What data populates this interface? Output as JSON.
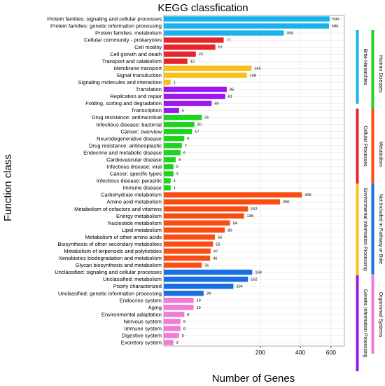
{
  "colors": {
    "cellular_processes": "#e8262a",
    "environmental_information_processing": "#f8bf1f",
    "genetic_information_processing": "#9b17ef",
    "human_diseases": "#1fd41f",
    "metabolism": "#fb4d11",
    "not_included": "#1a6ee3",
    "organismal_systems": "#f27bd7",
    "brite": "#19b2ea"
  },
  "legend": [
    {
      "label": "Human Diseases",
      "color": "#1fd41f"
    },
    {
      "label": "Brite Hierarchies",
      "color": "#19b2ea"
    },
    {
      "label": "Metabolism",
      "color": "#fb4d11"
    },
    {
      "label": "Cellular Processes",
      "color": "#e8262a"
    },
    {
      "label": "Not Included in Pathway or Brite",
      "color": "#1a6ee3"
    },
    {
      "label": "Environmental Information Processing",
      "color": "#f8bf1f"
    },
    {
      "label": "Genetic Information Processing",
      "color": "#9b17ef"
    },
    {
      "label": "Organismal Systems",
      "color": "#f27bd7"
    }
  ],
  "chart_data": {
    "type": "bar",
    "orientation": "horizontal",
    "title": "KEGG classfication",
    "xlabel": "Number of Genes",
    "ylabel": "Function class",
    "x_scale": "sqrt",
    "xlim": [
      0,
      700
    ],
    "x_ticks": [
      200,
      400,
      600
    ],
    "grid": true,
    "legend_placement": "right, vertical bars",
    "categories": [
      {
        "label": "Protein families: signaling and cellular processes",
        "value": 590,
        "group": "brite"
      },
      {
        "label": "Protein families: genetic information processing",
        "value": 586,
        "group": "brite"
      },
      {
        "label": "Protein families: metabolism",
        "value": 309,
        "group": "brite"
      },
      {
        "label": "Cellular community - prokaryotes",
        "value": 77,
        "group": "cellular_processes"
      },
      {
        "label": "Cell motility",
        "value": 57,
        "group": "cellular_processes"
      },
      {
        "label": "Cell growth and death",
        "value": 22,
        "group": "cellular_processes"
      },
      {
        "label": "Transport and catabolism",
        "value": 12,
        "group": "cellular_processes"
      },
      {
        "label": "Membrane transport",
        "value": 165,
        "group": "environmental_information_processing"
      },
      {
        "label": "Signal transduction",
        "value": 148,
        "group": "environmental_information_processing"
      },
      {
        "label": "Signaling molecules and interaction",
        "value": 1,
        "group": "environmental_information_processing"
      },
      {
        "label": "Translation",
        "value": 85,
        "group": "genetic_information_processing"
      },
      {
        "label": "Replication and repair",
        "value": 81,
        "group": "genetic_information_processing"
      },
      {
        "label": "Folding, sorting and degradation",
        "value": 49,
        "group": "genetic_information_processing"
      },
      {
        "label": "Transcription",
        "value": 5,
        "group": "genetic_information_processing"
      },
      {
        "label": "Drug resistance: antimicrobial",
        "value": 31,
        "group": "human_diseases"
      },
      {
        "label": "Infectious disease: bacterial",
        "value": 20,
        "group": "human_diseases"
      },
      {
        "label": "Cancer: overview",
        "value": 17,
        "group": "human_diseases"
      },
      {
        "label": "Neurodegenerative disease",
        "value": 9,
        "group": "human_diseases"
      },
      {
        "label": "Drug resistance: antineoplastic",
        "value": 7,
        "group": "human_diseases"
      },
      {
        "label": "Endocrine and metabolic disease",
        "value": 6,
        "group": "human_diseases"
      },
      {
        "label": "Cardiovascular disease",
        "value": 3,
        "group": "human_diseases"
      },
      {
        "label": "Infectious disease: viral",
        "value": 2,
        "group": "human_diseases"
      },
      {
        "label": "Cancer: specific types",
        "value": 2,
        "group": "human_diseases"
      },
      {
        "label": "Infectious disease: parasitic",
        "value": 1,
        "group": "human_diseases"
      },
      {
        "label": "Immune disease",
        "value": 1,
        "group": "human_diseases"
      },
      {
        "label": "Carbohydrate metabolism",
        "value": 409,
        "group": "metabolism"
      },
      {
        "label": "Amino acid metabolism",
        "value": 290,
        "group": "metabolism"
      },
      {
        "label": "Metabolism of cofactors and vitamins",
        "value": 152,
        "group": "metabolism"
      },
      {
        "label": "Energy metabolism",
        "value": 138,
        "group": "metabolism"
      },
      {
        "label": "Nucleotide metabolism",
        "value": 94,
        "group": "metabolism"
      },
      {
        "label": "Lipid metabolism",
        "value": 80,
        "group": "metabolism"
      },
      {
        "label": "Metabolism of other amino acids",
        "value": 56,
        "group": "metabolism"
      },
      {
        "label": "Biosynthesis of other secondary metabolites",
        "value": 52,
        "group": "metabolism"
      },
      {
        "label": "Metabolism of terpenoids and polyketides",
        "value": 47,
        "group": "metabolism"
      },
      {
        "label": "Xenobiotics biodegradation and metabolism",
        "value": 46,
        "group": "metabolism"
      },
      {
        "label": "Glycan biosynthesis and metabolism",
        "value": 31,
        "group": "metabolism"
      },
      {
        "label": "Unclassified: signaling and cellular processes",
        "value": 168,
        "group": "not_included"
      },
      {
        "label": "Unclassified: metabolism",
        "value": 152,
        "group": "not_included"
      },
      {
        "label": "Poorly characterized",
        "value": 104,
        "group": "not_included"
      },
      {
        "label": "Unclassified: genetic information processing",
        "value": 34,
        "group": "not_included"
      },
      {
        "label": "Endocrine system",
        "value": 19,
        "group": "organismal_systems"
      },
      {
        "label": "Aging",
        "value": 19,
        "group": "organismal_systems"
      },
      {
        "label": "Environmental adaptation",
        "value": 9,
        "group": "organismal_systems"
      },
      {
        "label": "Nervous system",
        "value": 6,
        "group": "organismal_systems"
      },
      {
        "label": "Immune system",
        "value": 6,
        "group": "organismal_systems"
      },
      {
        "label": "Digestive system",
        "value": 5,
        "group": "organismal_systems"
      },
      {
        "label": "Excretory system",
        "value": 2,
        "group": "organismal_systems"
      }
    ]
  }
}
